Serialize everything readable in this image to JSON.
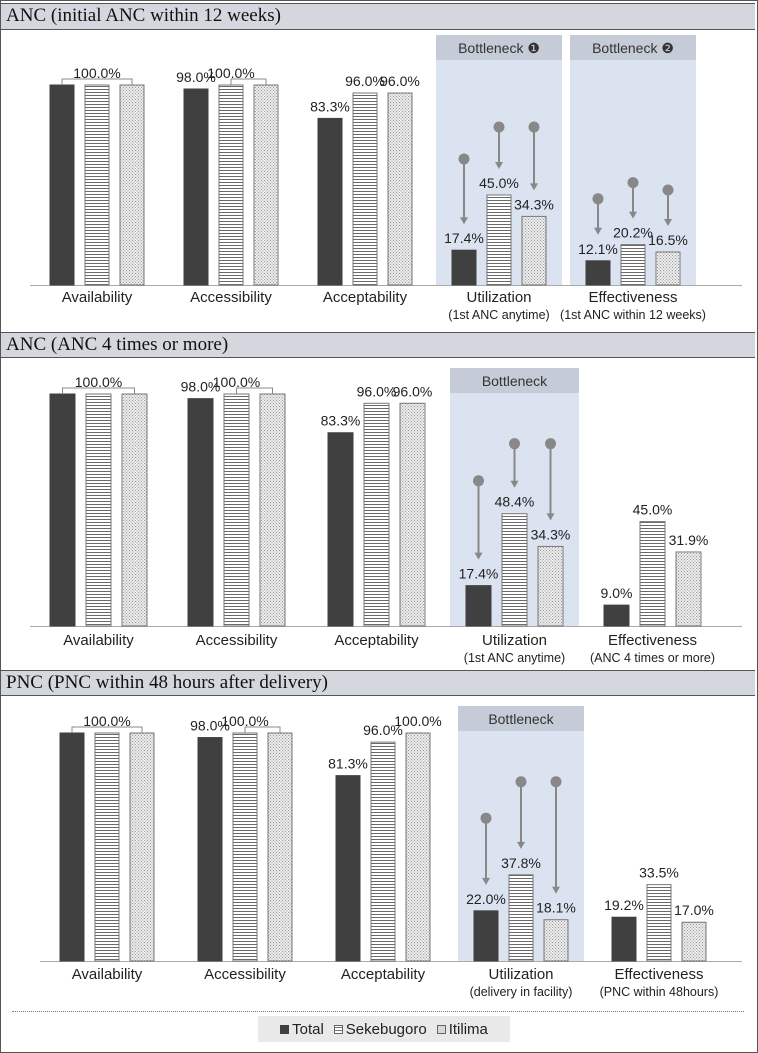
{
  "colors": {
    "total": "#404040",
    "header_bg": "#d4d8de",
    "bottleneck_bg": "#dbe2f0",
    "bottleneck_title_bg": "#c5ccd8",
    "arrow": "#888888"
  },
  "legend": {
    "items": [
      {
        "label": "Total",
        "key": "total"
      },
      {
        "label": "Sekebugoro",
        "key": "sekebugoro"
      },
      {
        "label": "Itilima",
        "key": "itilima"
      }
    ]
  },
  "chart_data": [
    {
      "type": "bar",
      "title": "ANC (initial ANC within 12 weeks)",
      "series_names": [
        "Total",
        "Sekebugoro",
        "Itilima"
      ],
      "groups": [
        {
          "label": "Availability",
          "sublabel": "",
          "values": [
            100.0,
            100.0,
            100.0
          ],
          "labels": [
            "",
            "100.0%",
            ""
          ]
        },
        {
          "label": "Accessibility",
          "sublabel": "",
          "values": [
            98.0,
            100.0,
            100.0
          ],
          "labels": [
            "98.0%",
            "100.0%",
            ""
          ]
        },
        {
          "label": "Acceptability",
          "sublabel": "",
          "values": [
            83.3,
            96.0,
            96.0
          ],
          "labels": [
            "83.3%",
            "96.0%",
            "96.0%"
          ]
        },
        {
          "label": "Utilization",
          "sublabel": "(1st ANC anytime)",
          "values": [
            17.4,
            45.0,
            34.3
          ],
          "labels": [
            "17.4%",
            "45.0%",
            "34.3%"
          ]
        },
        {
          "label": "Effectiveness",
          "sublabel": "(1st ANC within 12 weeks)",
          "values": [
            12.1,
            20.2,
            16.5
          ],
          "labels": [
            "12.1%",
            "20.2%",
            "16.5%"
          ]
        }
      ],
      "bottlenecks": [
        {
          "group": 3,
          "label": "Bottleneck ❶"
        },
        {
          "group": 4,
          "label": "Bottleneck ❷"
        }
      ],
      "ylim": [
        0,
        100
      ]
    },
    {
      "type": "bar",
      "title": "ANC (ANC 4 times or more)",
      "series_names": [
        "Total",
        "Sekebugoro",
        "Itilima"
      ],
      "groups": [
        {
          "label": "Availability",
          "sublabel": "",
          "values": [
            100.0,
            100.0,
            100.0
          ],
          "labels": [
            "",
            "100.0%",
            ""
          ]
        },
        {
          "label": "Accessibility",
          "sublabel": "",
          "values": [
            98.0,
            100.0,
            100.0
          ],
          "labels": [
            "98.0%",
            "100.0%",
            ""
          ]
        },
        {
          "label": "Acceptability",
          "sublabel": "",
          "values": [
            83.3,
            96.0,
            96.0
          ],
          "labels": [
            "83.3%",
            "96.0%",
            "96.0%"
          ]
        },
        {
          "label": "Utilization",
          "sublabel": "(1st ANC anytime)",
          "values": [
            17.4,
            48.4,
            34.3
          ],
          "labels": [
            "17.4%",
            "48.4%",
            "34.3%"
          ]
        },
        {
          "label": "Effectiveness",
          "sublabel": "(ANC 4 times or more)",
          "values": [
            9.0,
            45.0,
            31.9
          ],
          "labels": [
            "9.0%",
            "45.0%",
            "31.9%"
          ]
        }
      ],
      "bottlenecks": [
        {
          "group": 3,
          "label": "Bottleneck"
        }
      ],
      "ylim": [
        0,
        100
      ]
    },
    {
      "type": "bar",
      "title": "PNC (PNC within 48 hours after delivery)",
      "series_names": [
        "Total",
        "Sekebugoro",
        "Itilima"
      ],
      "groups": [
        {
          "label": "Availability",
          "sublabel": "",
          "values": [
            100.0,
            100.0,
            100.0
          ],
          "labels": [
            "",
            "100.0%",
            ""
          ]
        },
        {
          "label": "Accessibility",
          "sublabel": "",
          "values": [
            98.0,
            100.0,
            100.0
          ],
          "labels": [
            "98.0%",
            "100.0%",
            ""
          ]
        },
        {
          "label": "Acceptability",
          "sublabel": "",
          "values": [
            81.3,
            96.0,
            100.0
          ],
          "labels": [
            "81.3%",
            "96.0%",
            "100.0%"
          ]
        },
        {
          "label": "Utilization",
          "sublabel": "(delivery in facility)",
          "values": [
            22.0,
            37.8,
            18.1
          ],
          "labels": [
            "22.0%",
            "37.8%",
            "18.1%"
          ]
        },
        {
          "label": "Effectiveness",
          "sublabel": "(PNC within 48hours)",
          "values": [
            19.2,
            33.5,
            17.0
          ],
          "labels": [
            "19.2%",
            "33.5%",
            "17.0%"
          ]
        }
      ],
      "bottlenecks": [
        {
          "group": 3,
          "label": "Bottleneck"
        }
      ],
      "ylim": [
        0,
        100
      ]
    }
  ]
}
